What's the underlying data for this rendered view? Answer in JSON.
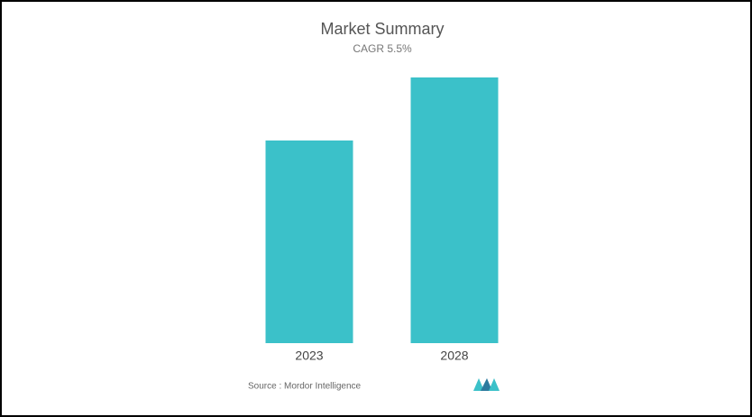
{
  "chart_data": {
    "type": "bar",
    "title": "Market Summary",
    "subtitle": "CAGR 5.5%",
    "categories": [
      "2023",
      "2028"
    ],
    "values": [
      225,
      295
    ],
    "color": "#3bc1c9",
    "ylim": [
      0,
      300
    ],
    "source": "Source : Mordor Intelligence"
  }
}
